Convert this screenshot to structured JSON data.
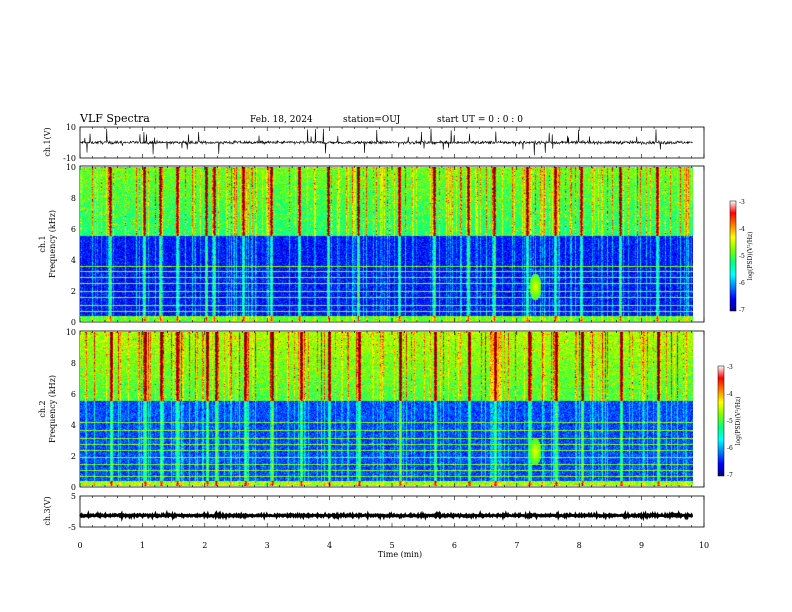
{
  "header": {
    "title": "VLF Spectra",
    "date": "Feb. 18, 2024",
    "station": "station=OUJ",
    "start_ut": "start UT =  0 : 0 : 0"
  },
  "chart_data": [
    {
      "type": "line",
      "panel": "ch1-waveform",
      "ylabel": "ch.1(V)",
      "ylim": [
        -10,
        10
      ],
      "y_ticks": [
        "10",
        "-10"
      ],
      "xlim": [
        0,
        10
      ],
      "series": [
        {
          "mean": 0,
          "amplitude": 1.0,
          "spikes_to": 10
        }
      ]
    },
    {
      "type": "heatmap",
      "panel": "ch1-spectrogram",
      "ylabel_line1": "ch.1",
      "ylabel_line2": "Frequency (kHz)",
      "ylim": [
        0,
        10
      ],
      "y_ticks": [
        "0",
        "2",
        "4",
        "6",
        "8",
        "10"
      ],
      "xlim": [
        0,
        9.82
      ],
      "colorbar": {
        "label": "log(PSD)(V²/Hz)",
        "range": [
          -7,
          -3
        ],
        "ticks": [
          "-3",
          "-4",
          "-5",
          "-6",
          "-7"
        ]
      },
      "colormap": [
        "#000080",
        "#0000ff",
        "#0080ff",
        "#00ffff",
        "#00ff80",
        "#80ff00",
        "#ffff00",
        "#ff8000",
        "#ff0000",
        "#800000"
      ],
      "noise_floor_log": -6.5,
      "upper_band_log": -5.2,
      "band_transition_khz": 5.5,
      "horizontal_lines_khz": [
        0.6,
        1.0,
        1.5,
        1.9,
        2.4,
        2.8,
        3.2,
        3.5
      ],
      "bright_spheric_times_min": [
        0.48,
        1.02,
        1.28,
        1.55,
        2.02,
        2.15,
        2.62,
        3.06,
        3.52,
        3.98,
        4.46,
        5.12,
        5.68,
        6.22,
        6.64,
        7.18,
        7.62,
        8.04,
        8.66,
        9.26
      ],
      "noise_blob": {
        "t": 7.3,
        "f": 2.2
      }
    },
    {
      "type": "heatmap",
      "panel": "ch2-spectrogram",
      "ylabel_line1": "ch.2",
      "ylabel_line2": "Frequency (kHz)",
      "ylim": [
        0,
        10
      ],
      "y_ticks": [
        "0",
        "2",
        "4",
        "6",
        "8",
        "10"
      ],
      "xlim": [
        0,
        9.82
      ],
      "colorbar": {
        "label": "log(PSD)(V²/Hz)",
        "range": [
          -7,
          -3
        ],
        "ticks": [
          "-3",
          "-4",
          "-5",
          "-6",
          "-7"
        ]
      },
      "colormap": [
        "#000080",
        "#0000ff",
        "#0080ff",
        "#00ffff",
        "#00ff80",
        "#80ff00",
        "#ffff00",
        "#ff8000",
        "#ff0000",
        "#800000"
      ],
      "noise_floor_log": -6.3,
      "upper_band_log": -5.0,
      "band_transition_khz": 5.5,
      "horizontal_lines_khz": [
        0.6,
        1.0,
        1.4,
        1.8,
        2.3,
        2.7,
        3.1,
        3.6,
        4.1
      ],
      "bright_spheric_times_min": [
        0.5,
        1.04,
        1.3,
        1.56,
        2.04,
        2.18,
        2.64,
        3.08,
        3.55,
        4.0,
        4.48,
        5.14,
        5.7,
        6.24,
        6.66,
        7.2,
        7.64,
        8.06,
        8.68,
        9.28
      ],
      "noise_blob": {
        "t": 7.3,
        "f": 2.2
      }
    },
    {
      "type": "line",
      "panel": "ch3-waveform",
      "ylabel": "ch.3(V)",
      "ylim": [
        -5,
        5
      ],
      "y_ticks": [
        "5",
        "-5"
      ],
      "xlim": [
        0,
        10
      ],
      "xlabel": "Time (min)",
      "x_ticks": [
        "0",
        "1",
        "2",
        "3",
        "4",
        "5",
        "6",
        "7",
        "8",
        "9",
        "10"
      ],
      "series": [
        {
          "mean": -1.3,
          "amplitude": 0.3
        }
      ]
    }
  ]
}
